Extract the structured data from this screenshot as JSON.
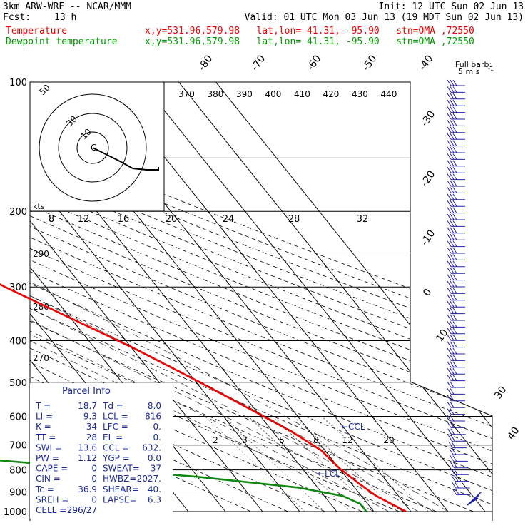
{
  "header": {
    "model": "3km ARW-WRF -- NCAR/MMM",
    "init": "Init: 12 UTC Sun 02 Jun 13",
    "fcst_label": "Fcst:",
    "fcst_hours": "13 h",
    "valid": "Valid: 01 UTC Mon 03 Jun 13 (19 MDT Sun 02 Jun 13)",
    "temp_label": "Temperature",
    "temp_info": "x,y=531.96,579.98   lat,lon= 41.31, -95.90   stn=OMA ,72550",
    "dew_label": "Dewpoint temperature",
    "dew_info": "x,y=531.96,579.98   lat,lon= 41.31, -95.90   stn=OMA ,72550"
  },
  "colors": {
    "temperature": "#ee0000",
    "dewpoint": "#118811",
    "parcel_text": "#1a2a9a",
    "wind_barbs": "#2222aa",
    "grid": "#000000"
  },
  "barb_legend": {
    "title": "Full barb:",
    "value": "5 m s",
    "sup": "-1"
  },
  "chart_data": {
    "type": "skew-t",
    "pressure_ticks": [
      "100",
      "200",
      "300",
      "400",
      "500",
      "600",
      "700",
      "800",
      "900",
      "1000"
    ],
    "pressure_levels": [
      100,
      200,
      300,
      400,
      500,
      600,
      700,
      800,
      900,
      1000
    ],
    "isotherm_labels": [
      "-80",
      "-70",
      "-60",
      "-50",
      "-40",
      "-30",
      "-20",
      "-10",
      "0",
      "10",
      "30",
      "40"
    ],
    "theta_labels": [
      "370",
      "380",
      "390",
      "400",
      "410",
      "420",
      "430",
      "440"
    ],
    "hodo_labels": [
      "8",
      "12",
      "16",
      "20",
      "24",
      "28",
      "32"
    ],
    "hodo_units": "kts",
    "hodo_rings": [
      "50",
      "30",
      "10"
    ],
    "left_theta_labels": [
      "290",
      "280",
      "270"
    ],
    "mixing_ratio_labels": [
      "2",
      "3",
      "5",
      "8",
      "12",
      "20"
    ],
    "lcl_marks": [
      "CCL",
      "LCL"
    ],
    "temperature": {
      "name": "Temperature",
      "p": [
        100,
        130,
        160,
        200,
        240,
        300,
        360,
        420,
        500,
        580,
        650,
        720,
        790,
        860,
        920,
        1000
      ],
      "t": [
        -59,
        -56,
        -55,
        -58,
        -53,
        -41,
        -29,
        -19,
        -9,
        -1,
        5,
        9,
        10,
        12,
        14,
        18.7
      ]
    },
    "dewpoint": {
      "name": "Dewpoint temperature",
      "p": [
        100,
        130,
        160,
        200,
        240,
        300,
        360,
        420,
        500,
        560,
        600,
        650,
        700,
        760,
        830,
        880,
        920,
        960,
        1000
      ],
      "t": [
        -76,
        -82,
        -85,
        -90,
        -90,
        -86,
        -80,
        -72,
        -68,
        -70,
        -80,
        -100,
        -128,
        -80,
        -30,
        -5,
        5,
        8,
        8
      ]
    },
    "parcel_info": {
      "title": "Parcel Info",
      "rows": [
        [
          "T  =",
          "18.7",
          "Td =",
          "8.0"
        ],
        [
          "LI =",
          "9.3",
          "LCL =",
          "816"
        ],
        [
          "K  =",
          "-34",
          "LFC =",
          "0."
        ],
        [
          "TT =",
          "28",
          "EL =",
          "0."
        ],
        [
          "SWI =",
          "13.6",
          "CCL =",
          "632."
        ],
        [
          "PW =",
          "1.12",
          "YGP =",
          "0.0"
        ],
        [
          "CAPE =",
          "0",
          "SWEAT=",
          "37"
        ],
        [
          "CIN =",
          "0",
          "HWBZ=",
          "2027."
        ],
        [
          "Tc =",
          "36.9",
          "SHEAR=",
          "40."
        ],
        [
          "SREH =",
          "0",
          "LAPSE=",
          "6.3"
        ],
        [
          "CELL =",
          "296/27",
          "",
          ""
        ]
      ]
    }
  }
}
